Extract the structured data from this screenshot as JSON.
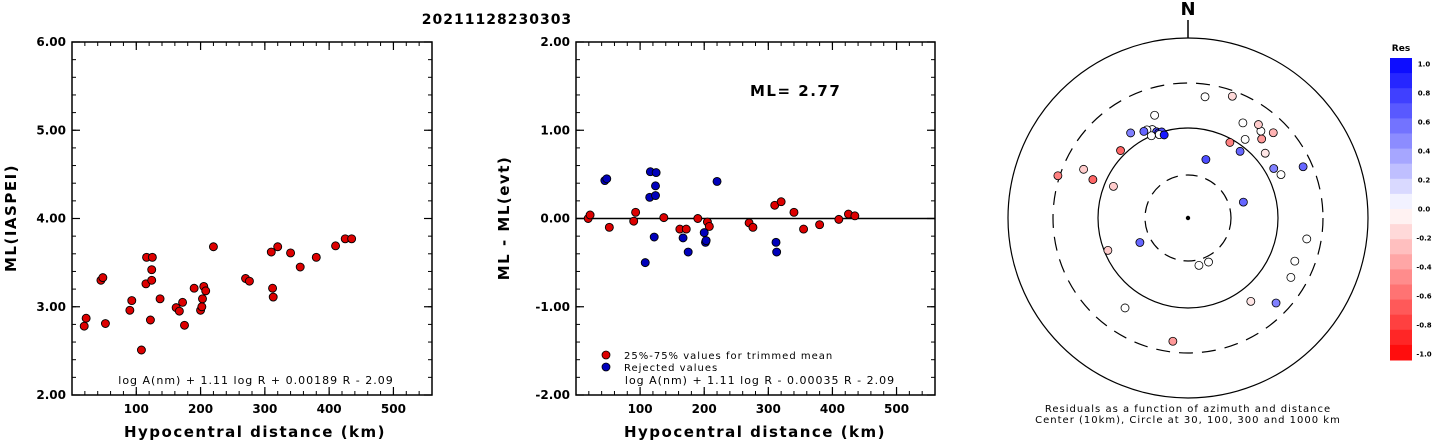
{
  "title": "20211128230303",
  "chart_data": [
    {
      "type": "scatter",
      "xlabel": "Hypocentral distance (km)",
      "ylabel": "ML(IASPEI)",
      "xlim": [
        0,
        560
      ],
      "ylim": [
        2.0,
        6.0
      ],
      "xticks": [
        "100",
        "200",
        "300",
        "400",
        "500"
      ],
      "yticks": [
        "2.00",
        "3.00",
        "4.00",
        "5.00",
        "6.00"
      ],
      "formula": "log A(nm) + 1.11 log R + 0.00189 R - 2.09",
      "series": [
        {
          "color": "#dd0000",
          "points": [
            [
              19,
              2.78
            ],
            [
              22,
              2.87
            ],
            [
              45,
              3.3
            ],
            [
              48,
              3.33
            ],
            [
              52,
              2.81
            ],
            [
              90,
              2.96
            ],
            [
              93,
              3.07
            ],
            [
              108,
              2.51
            ],
            [
              115,
              3.26
            ],
            [
              116,
              3.56
            ],
            [
              125,
              3.56
            ],
            [
              124,
              3.42
            ],
            [
              124,
              3.3
            ],
            [
              122,
              2.85
            ],
            [
              137,
              3.09
            ],
            [
              162,
              2.99
            ],
            [
              167,
              2.95
            ],
            [
              172,
              3.05
            ],
            [
              175,
              2.79
            ],
            [
              190,
              3.21
            ],
            [
              200,
              2.96
            ],
            [
              202,
              3.0
            ],
            [
              203,
              3.09
            ],
            [
              205,
              3.23
            ],
            [
              208,
              3.18
            ],
            [
              220,
              3.68
            ],
            [
              270,
              3.32
            ],
            [
              276,
              3.29
            ],
            [
              310,
              3.62
            ],
            [
              312,
              3.21
            ],
            [
              313,
              3.11
            ],
            [
              320,
              3.68
            ],
            [
              340,
              3.61
            ],
            [
              355,
              3.45
            ],
            [
              380,
              3.56
            ],
            [
              410,
              3.69
            ],
            [
              425,
              3.77
            ],
            [
              435,
              3.77
            ]
          ]
        }
      ]
    },
    {
      "type": "scatter",
      "xlabel": "Hypocentral distance (km)",
      "ylabel": "ML - ML(evt)",
      "xlim": [
        0,
        560
      ],
      "ylim": [
        -2.0,
        2.0
      ],
      "xticks": [
        "100",
        "200",
        "300",
        "400",
        "500"
      ],
      "yticks": [
        "-2.00",
        "-1.00",
        "0.00",
        "1.00",
        "2.00"
      ],
      "reference_line": 0.0,
      "annotation": "ML= 2.77",
      "formula": "log A(nm) + 1.11 log R - 0.00035 R - 2.09",
      "series": [
        {
          "name": "25%-75% values for trimmed mean",
          "color": "#dd0000",
          "points": [
            [
              19,
              0.0
            ],
            [
              22,
              0.04
            ],
            [
              52,
              -0.1
            ],
            [
              90,
              -0.03
            ],
            [
              93,
              0.07
            ],
            [
              137,
              0.01
            ],
            [
              162,
              -0.12
            ],
            [
              172,
              -0.12
            ],
            [
              190,
              0.0
            ],
            [
              205,
              -0.04
            ],
            [
              208,
              -0.09
            ],
            [
              270,
              -0.05
            ],
            [
              276,
              -0.1
            ],
            [
              310,
              0.15
            ],
            [
              320,
              0.19
            ],
            [
              340,
              0.07
            ],
            [
              355,
              -0.12
            ],
            [
              380,
              -0.07
            ],
            [
              410,
              -0.01
            ],
            [
              425,
              0.05
            ],
            [
              435,
              0.03
            ]
          ]
        },
        {
          "name": "Rejected values",
          "color": "#0000bb",
          "points": [
            [
              45,
              0.43
            ],
            [
              48,
              0.45
            ],
            [
              108,
              -0.5
            ],
            [
              115,
              0.24
            ],
            [
              116,
              0.53
            ],
            [
              122,
              -0.21
            ],
            [
              124,
              0.37
            ],
            [
              124,
              0.26
            ],
            [
              125,
              0.52
            ],
            [
              167,
              -0.22
            ],
            [
              175,
              -0.38
            ],
            [
              200,
              -0.16
            ],
            [
              202,
              -0.27
            ],
            [
              203,
              -0.25
            ],
            [
              220,
              0.42
            ],
            [
              312,
              -0.27
            ],
            [
              313,
              -0.38
            ]
          ]
        }
      ]
    }
  ],
  "polar": {
    "north_label": "N",
    "caption_line1": "Residuals as a function of azimuth and distance",
    "caption_line2": "Center (10km), Circle at 30, 100, 300 and 1000 km",
    "points": [
      {
        "az": 8,
        "r": 0.68,
        "res": 0.0
      },
      {
        "az": 20,
        "r": 0.72,
        "res": -0.15
      },
      {
        "az": -18,
        "r": 0.6,
        "res": 0.0
      },
      {
        "az": -22,
        "r": 0.53,
        "res": 0.0
      },
      {
        "az": -25,
        "r": 0.54,
        "res": 0.0
      },
      {
        "az": -27,
        "r": 0.54,
        "res": 0.6
      },
      {
        "az": -20,
        "r": 0.51,
        "res": 0.7
      },
      {
        "az": -19,
        "r": 0.5,
        "res": 0.8
      },
      {
        "az": -17,
        "r": 0.5,
        "res": 0.7
      },
      {
        "az": -19,
        "r": 0.49,
        "res": 0.0
      },
      {
        "az": -16,
        "r": 0.48,
        "res": 0.9
      },
      {
        "az": -24,
        "r": 0.5,
        "res": 0.0
      },
      {
        "az": -34,
        "r": 0.57,
        "res": 0.5
      },
      {
        "az": -45,
        "r": 0.53,
        "res": -0.6
      },
      {
        "az": -65,
        "r": 0.64,
        "res": -0.2
      },
      {
        "az": -68,
        "r": 0.57,
        "res": -0.6
      },
      {
        "az": -72,
        "r": 0.76,
        "res": -0.5
      },
      {
        "az": -67,
        "r": 0.45,
        "res": -0.2
      },
      {
        "az": -112,
        "r": 0.48,
        "res": -0.2
      },
      {
        "az": -117,
        "r": 0.3,
        "res": 0.6
      },
      {
        "az": -145,
        "r": 0.61,
        "res": 0.0
      },
      {
        "az": -173,
        "r": 0.69,
        "res": -0.4
      },
      {
        "az": 167,
        "r": 0.27,
        "res": 0.0
      },
      {
        "az": 155,
        "r": 0.27,
        "res": 0.0
      },
      {
        "az": 143,
        "r": 0.58,
        "res": -0.1
      },
      {
        "az": 134,
        "r": 0.68,
        "res": 0.5
      },
      {
        "az": 120,
        "r": 0.66,
        "res": 0.0
      },
      {
        "az": 112,
        "r": 0.64,
        "res": 0.0
      },
      {
        "az": 100,
        "r": 0.67,
        "res": 0.0
      },
      {
        "az": 74,
        "r": 0.32,
        "res": 0.6
      },
      {
        "az": 65,
        "r": 0.57,
        "res": 0.0
      },
      {
        "az": 66,
        "r": 0.7,
        "res": 0.6
      },
      {
        "az": 60,
        "r": 0.55,
        "res": 0.5
      },
      {
        "az": 50,
        "r": 0.56,
        "res": -0.1
      },
      {
        "az": 43,
        "r": 0.6,
        "res": -0.4
      },
      {
        "az": 40,
        "r": 0.63,
        "res": 0.0
      },
      {
        "az": 37,
        "r": 0.65,
        "res": -0.2
      },
      {
        "az": 45,
        "r": 0.67,
        "res": -0.3
      },
      {
        "az": 30,
        "r": 0.61,
        "res": 0.0
      },
      {
        "az": 36,
        "r": 0.54,
        "res": 0.0
      },
      {
        "az": 29,
        "r": 0.48,
        "res": -0.5
      },
      {
        "az": 38,
        "r": 0.47,
        "res": 0.6
      },
      {
        "az": 17,
        "r": 0.34,
        "res": 0.7
      }
    ]
  },
  "colorbar": {
    "title": "Res",
    "ticks": [
      "1.0",
      "0.8",
      "0.6",
      "0.4",
      "0.2",
      "0.0",
      "-0.2",
      "-0.4",
      "-0.6",
      "-0.8",
      "-1.0"
    ]
  }
}
